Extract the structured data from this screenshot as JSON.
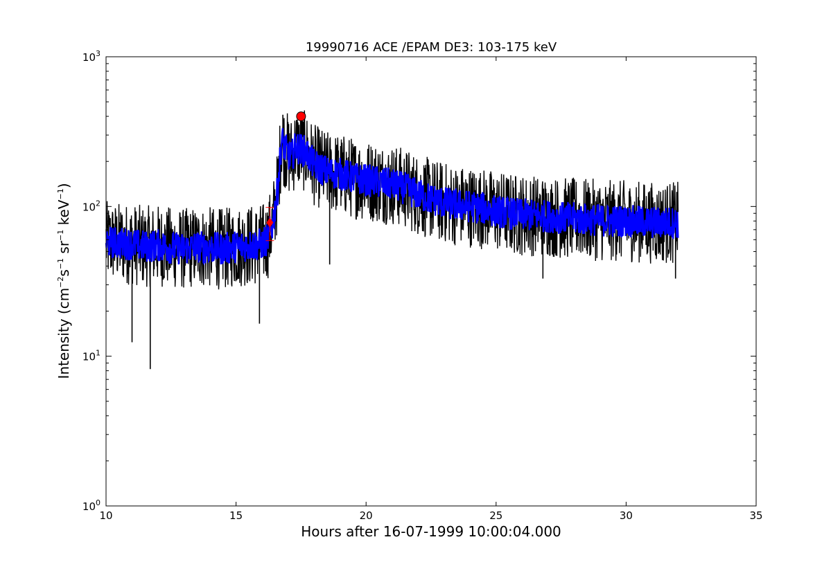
{
  "chart_data": {
    "type": "line",
    "title": "19990716 ACE /EPAM DE3: 103-175 keV",
    "xlabel": "Hours after 16-07-1999 10:00:04.000",
    "ylabel": {
      "prefix": "Intensity (cm",
      "exp1": "−2",
      "s": "s",
      "exp2": "−1",
      "sr": " sr",
      "exp3": "−1",
      "kev": " keV",
      "exp4": "−1",
      "suffix": ")"
    },
    "xlim": [
      10,
      35
    ],
    "ylim": [
      1,
      1000
    ],
    "yscale": "log",
    "x_ticks": [
      "10",
      "15",
      "20",
      "25",
      "30",
      "35"
    ],
    "y_ticks": [
      {
        "base": "10",
        "exp": "0"
      },
      {
        "base": "10",
        "exp": "1"
      },
      {
        "base": "10",
        "exp": "2"
      },
      {
        "base": "10",
        "exp": "3"
      }
    ],
    "grid": false,
    "colors": {
      "raw": "#000000",
      "smoothed": "#0000ff",
      "markers": "#ff0000"
    },
    "series": [
      {
        "style": "raw",
        "x": [
          10.0,
          11.0,
          11.5,
          12.0,
          12.5,
          13.0,
          13.5,
          14.0,
          14.5,
          15.0,
          15.5,
          16.0,
          16.2,
          16.4,
          16.6,
          16.75,
          16.9,
          17.1,
          17.3,
          17.5,
          17.7,
          18.0,
          18.5,
          19.0,
          19.5,
          20.0,
          20.5,
          21.0,
          21.5,
          22.0,
          22.5,
          23.0,
          23.5,
          24.0,
          24.5,
          25.0,
          25.5,
          26.0,
          26.5,
          27.0,
          27.5,
          28.0,
          28.5,
          29.0,
          29.5,
          30.0,
          30.5,
          31.0,
          31.5,
          32.0
        ],
        "y": [
          58,
          56,
          54,
          55,
          53,
          52,
          54,
          53,
          52,
          54,
          55,
          56,
          60,
          75,
          130,
          280,
          240,
          210,
          250,
          240,
          230,
          190,
          170,
          165,
          155,
          150,
          145,
          140,
          132,
          120,
          112,
          106,
          102,
          100,
          97,
          93,
          90,
          88,
          87,
          86,
          84,
          83,
          82,
          81,
          80,
          80,
          79,
          78,
          78,
          78
        ],
        "spikes_low": [
          [
            11.0,
            12.4
          ],
          [
            11.7,
            8.2
          ],
          [
            15.9,
            16.5
          ],
          [
            18.6,
            41
          ],
          [
            26.8,
            33
          ],
          [
            31.9,
            33
          ]
        ],
        "spikes_high": [
          [
            17.5,
            400
          ],
          [
            16.8,
            410
          ],
          [
            16.5,
            115
          ]
        ]
      },
      {
        "style": "smoothed",
        "x": [
          10.0,
          11.0,
          11.5,
          12.0,
          12.5,
          13.0,
          13.5,
          14.0,
          14.5,
          15.0,
          15.5,
          16.0,
          16.2,
          16.4,
          16.6,
          16.75,
          16.9,
          17.1,
          17.3,
          17.5,
          17.7,
          18.0,
          18.5,
          19.0,
          19.5,
          20.0,
          20.5,
          21.0,
          21.5,
          22.0,
          22.5,
          23.0,
          23.5,
          24.0,
          24.5,
          25.0,
          25.5,
          26.0,
          26.5,
          27.0,
          27.5,
          28.0,
          28.5,
          29.0,
          29.5,
          30.0,
          30.5,
          31.0,
          31.5,
          32.0
        ],
        "y": [
          58,
          56,
          54,
          55,
          53,
          52,
          54,
          53,
          52,
          54,
          55,
          56,
          60,
          75,
          130,
          280,
          240,
          210,
          250,
          240,
          230,
          190,
          170,
          165,
          155,
          150,
          145,
          140,
          132,
          120,
          112,
          106,
          102,
          100,
          97,
          93,
          90,
          88,
          87,
          86,
          84,
          83,
          82,
          81,
          80,
          80,
          79,
          78,
          78,
          78
        ]
      }
    ],
    "markers": [
      {
        "shape": "circle",
        "x": 17.5,
        "y": 400
      },
      {
        "shape": "diamond",
        "x": 16.3,
        "y": 78
      }
    ]
  }
}
